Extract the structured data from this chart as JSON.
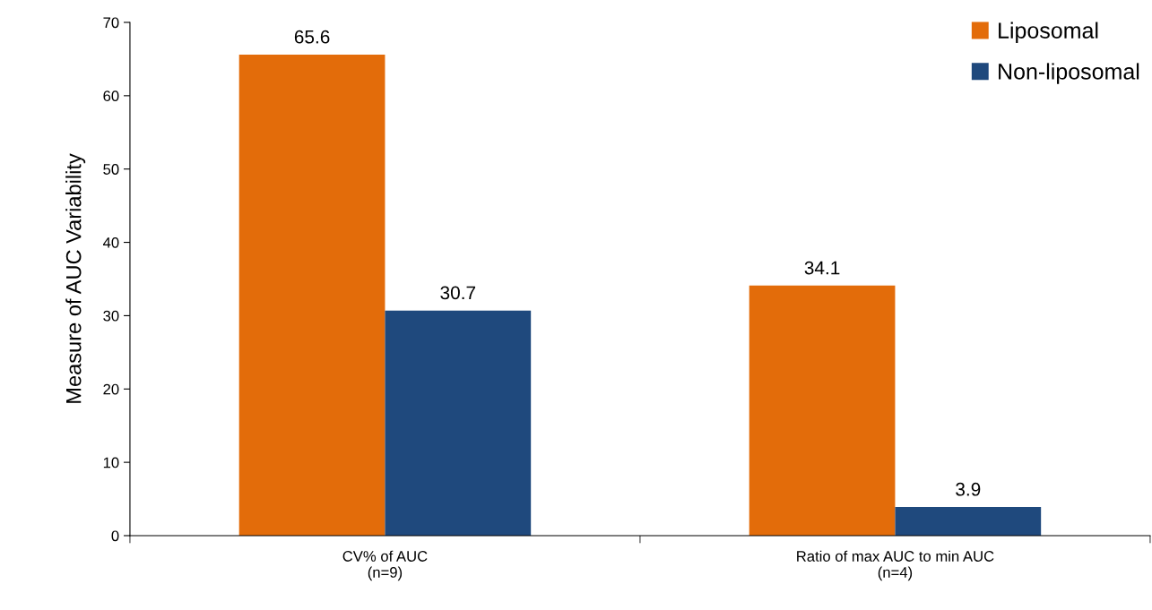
{
  "chart_data": {
    "type": "bar",
    "ylabel": "Measure of AUC Variability",
    "categories": [
      "CV% of AUC\n(n=9)",
      "Ratio of max AUC to min AUC\n(n=4)"
    ],
    "series": [
      {
        "name": "Liposomal",
        "color": "#e36c0a",
        "values": [
          65.6,
          34.1
        ]
      },
      {
        "name": "Non-liposomal",
        "color": "#1f497d",
        "values": [
          30.7,
          3.9
        ]
      }
    ],
    "ylim": [
      0,
      70
    ],
    "yticks": [
      0,
      10,
      20,
      30,
      40,
      50,
      60,
      70
    ],
    "data_labels": true,
    "legend": "top right",
    "grid": false
  }
}
